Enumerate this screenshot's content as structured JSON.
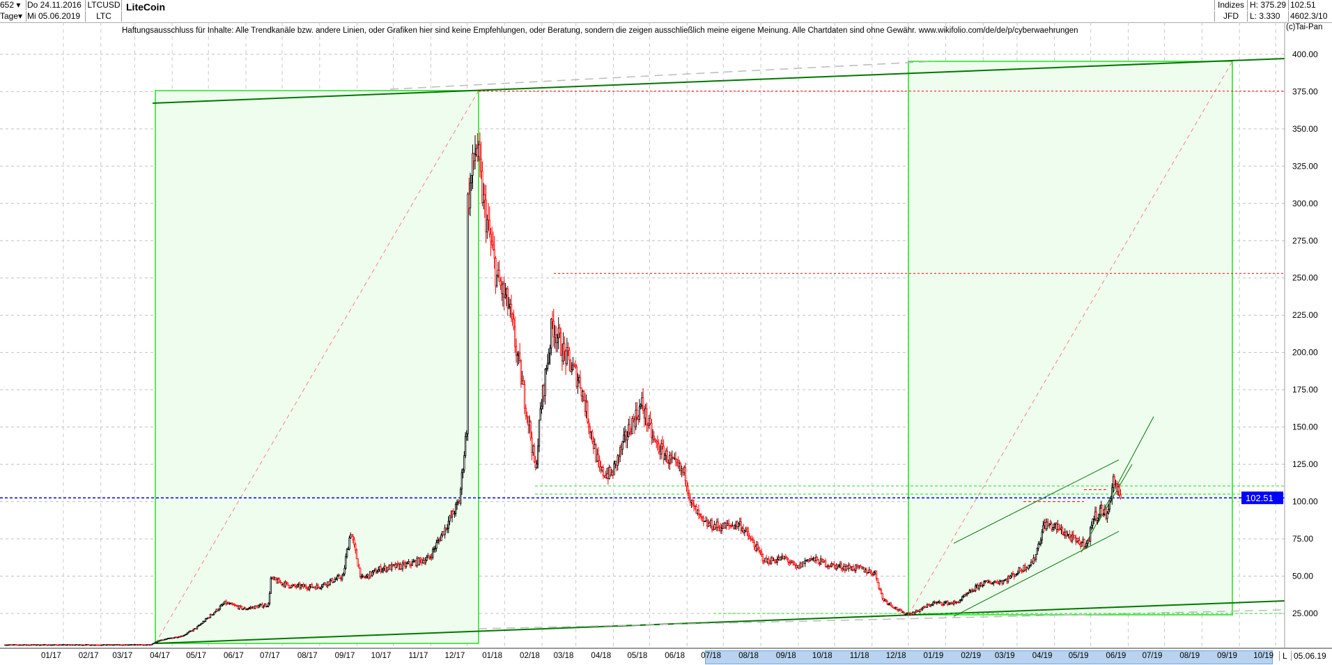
{
  "header": {
    "count": "652",
    "period": "Tage",
    "date_from": "Do 24.11.2016",
    "date_to": "Mi 05.06.2019",
    "symbol": "LTCUSD",
    "symbol_short": "LTC",
    "title": "LiteCoin",
    "market": "Indizes",
    "source": "JFD",
    "high": "H: 375.29",
    "low": "L: 3.330",
    "last": "102.51",
    "extra": "4602.3/10",
    "copyright": "(c)Tai-Pan"
  },
  "disclaimer": "Haftungsausschluss für Inhalte: Alle Trendkanäle bzw. andere Linien, oder Grafiken hier sind keine Empfehlungen, oder Beratung, sondern die zeigen ausschließlich meine eigene Meinung. Alle Chartdaten sind ohne Gewähr.  www.wikifolio.com/de/de/p/cyberwaehrungen",
  "footer": {
    "scale_mode": "L",
    "end_date": "05.06.19"
  },
  "colors": {
    "up": "#000000",
    "down": "#ff0000",
    "box_fill": "#eefdee",
    "box_border": "#22dd22",
    "trend": "#007700",
    "last_price": "#0000ff"
  },
  "chart_data": {
    "type": "candlestick",
    "title": "LiteCoin",
    "ylim": [
      0,
      410
    ],
    "grid": true,
    "y_ticks": [
      "25.000",
      "50.00",
      "75.00",
      "100.00",
      "125.00",
      "150.00",
      "175.00",
      "200.00",
      "225.00",
      "250.00",
      "275.00",
      "300.00",
      "325.00",
      "350.00",
      "375.00",
      "400.00"
    ],
    "x_ticks": [
      "01/17",
      "02/17",
      "03/17",
      "04/17",
      "05/17",
      "06/17",
      "07/17",
      "08/17",
      "09/17",
      "10/17",
      "11/17",
      "12/17",
      "01/18",
      "02/18",
      "03/18",
      "04/18",
      "05/18",
      "06/18",
      "07/18",
      "08/18",
      "09/18",
      "10/18",
      "11/18",
      "12/18",
      "01/19",
      "02/19",
      "03/19",
      "04/19",
      "05/19",
      "06/19",
      "07/19",
      "08/19",
      "09/19",
      "10/19"
    ],
    "last_price": 102.51,
    "high": 375.29,
    "low": 3.33,
    "closes_approx": [
      [
        "2016-11-24",
        4
      ],
      [
        "2017-03-25",
        4
      ],
      [
        "2017-04-01",
        7
      ],
      [
        "2017-04-20",
        10
      ],
      [
        "2017-05-01",
        15
      ],
      [
        "2017-05-15",
        25
      ],
      [
        "2017-05-25",
        32
      ],
      [
        "2017-06-10",
        28
      ],
      [
        "2017-06-30",
        31
      ],
      [
        "2017-07-02",
        48
      ],
      [
        "2017-07-20",
        43
      ],
      [
        "2017-08-10",
        43
      ],
      [
        "2017-08-31",
        50
      ],
      [
        "2017-09-02",
        62
      ],
      [
        "2017-09-06",
        80
      ],
      [
        "2017-09-15",
        48
      ],
      [
        "2017-10-01",
        55
      ],
      [
        "2017-10-20",
        57
      ],
      [
        "2017-11-10",
        62
      ],
      [
        "2017-11-25",
        85
      ],
      [
        "2017-12-05",
        100
      ],
      [
        "2017-12-11",
        150
      ],
      [
        "2017-12-12",
        300
      ],
      [
        "2017-12-19",
        340
      ],
      [
        "2017-12-25",
        300
      ],
      [
        "2018-01-05",
        250
      ],
      [
        "2018-01-15",
        230
      ],
      [
        "2018-02-01",
        150
      ],
      [
        "2018-02-06",
        120
      ],
      [
        "2018-02-10",
        160
      ],
      [
        "2018-02-20",
        220
      ],
      [
        "2018-03-01",
        200
      ],
      [
        "2018-03-15",
        180
      ],
      [
        "2018-03-31",
        120
      ],
      [
        "2018-04-10",
        118
      ],
      [
        "2018-04-25",
        150
      ],
      [
        "2018-05-05",
        165
      ],
      [
        "2018-05-15",
        140
      ],
      [
        "2018-05-31",
        125
      ],
      [
        "2018-06-10",
        118
      ],
      [
        "2018-06-15",
        98
      ],
      [
        "2018-06-25",
        85
      ],
      [
        "2018-07-10",
        83
      ],
      [
        "2018-07-25",
        85
      ],
      [
        "2018-08-15",
        60
      ],
      [
        "2018-09-01",
        62
      ],
      [
        "2018-09-10",
        55
      ],
      [
        "2018-09-20",
        62
      ],
      [
        "2018-10-10",
        57
      ],
      [
        "2018-11-01",
        55
      ],
      [
        "2018-11-14",
        52
      ],
      [
        "2018-11-20",
        35
      ],
      [
        "2018-12-07",
        25
      ],
      [
        "2018-12-15",
        25
      ],
      [
        "2019-01-01",
        32
      ],
      [
        "2019-01-20",
        32
      ],
      [
        "2019-02-10",
        45
      ],
      [
        "2019-03-01",
        47
      ],
      [
        "2019-03-25",
        60
      ],
      [
        "2019-04-03",
        85
      ],
      [
        "2019-04-15",
        82
      ],
      [
        "2019-05-01",
        72
      ],
      [
        "2019-05-10",
        73
      ],
      [
        "2019-05-12",
        87
      ],
      [
        "2019-05-20",
        95
      ],
      [
        "2019-05-25",
        90
      ],
      [
        "2019-05-30",
        115
      ],
      [
        "2019-06-05",
        102.51
      ]
    ]
  }
}
